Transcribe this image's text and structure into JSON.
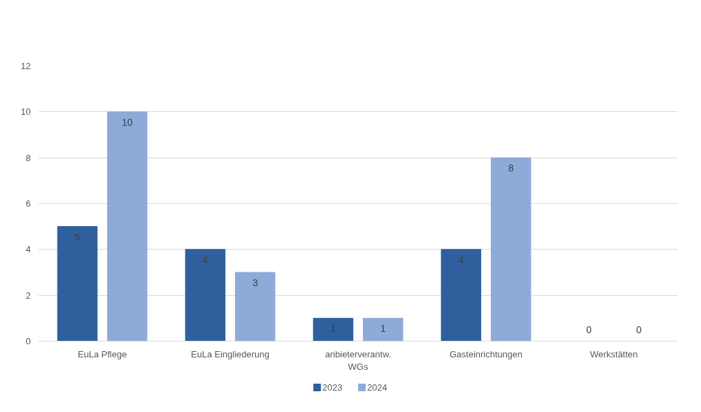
{
  "chart_data": {
    "type": "bar",
    "categories": [
      "EuLa Pflege",
      "EuLa Eingliederung",
      "anbieterverantw. WGs",
      "Gasteinrichtungen",
      "Werkstätten"
    ],
    "series": [
      {
        "name": "2023",
        "color": "#2f5f9c",
        "values": [
          5,
          4,
          1,
          4,
          0
        ]
      },
      {
        "name": "2024",
        "color": "#8eaad8",
        "values": [
          10,
          3,
          1,
          8,
          0
        ]
      }
    ],
    "ylim": [
      0,
      12
    ],
    "yticks": [
      0,
      2,
      4,
      6,
      8,
      10,
      12
    ],
    "grid": "y",
    "legend": "bottom",
    "data_labels": true
  }
}
